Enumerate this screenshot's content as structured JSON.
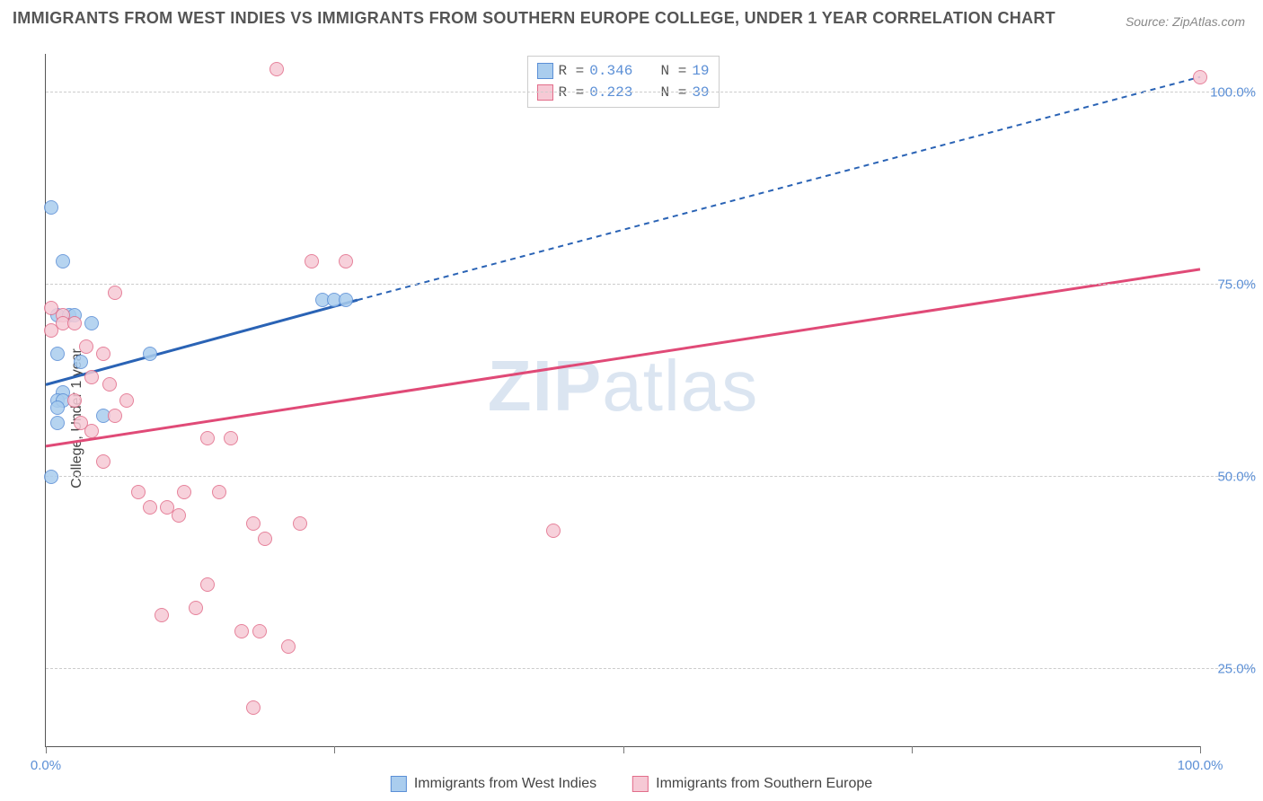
{
  "title": "IMMIGRANTS FROM WEST INDIES VS IMMIGRANTS FROM SOUTHERN EUROPE COLLEGE, UNDER 1 YEAR CORRELATION CHART",
  "source": "Source: ZipAtlas.com",
  "ylabel": "College, Under 1 year",
  "watermark_a": "ZIP",
  "watermark_b": "atlas",
  "chart": {
    "type": "scatter",
    "xlim": [
      0,
      100
    ],
    "ylim": [
      15,
      105
    ],
    "ytick_labels": [
      "25.0%",
      "50.0%",
      "75.0%",
      "100.0%"
    ],
    "ytick_values": [
      25,
      50,
      75,
      100
    ],
    "xtick_values": [
      0,
      25,
      50,
      75,
      100
    ],
    "xaxis_labels": [
      {
        "x": 0,
        "text": "0.0%"
      },
      {
        "x": 100,
        "text": "100.0%"
      }
    ],
    "grid_color": "#cccccc",
    "background_color": "#ffffff",
    "marker_radius": 8,
    "series": [
      {
        "name": "Immigrants from West Indies",
        "color_fill": "#aacdee",
        "color_stroke": "#5b8fd6",
        "R": "0.346",
        "N": "19",
        "trend": {
          "x1": 0,
          "y1": 62,
          "x2": 27,
          "y2": 73,
          "color": "#2a63b5",
          "width": 3
        },
        "trend_dash": {
          "x1": 27,
          "y1": 73,
          "x2": 100,
          "y2": 102,
          "color": "#2a63b5",
          "width": 2,
          "dash": "6,5"
        },
        "points": [
          {
            "x": 0.5,
            "y": 85
          },
          {
            "x": 1.5,
            "y": 78
          },
          {
            "x": 1.0,
            "y": 71
          },
          {
            "x": 2.0,
            "y": 71
          },
          {
            "x": 2.5,
            "y": 71
          },
          {
            "x": 4.0,
            "y": 70
          },
          {
            "x": 1.0,
            "y": 66
          },
          {
            "x": 3.0,
            "y": 65
          },
          {
            "x": 1.5,
            "y": 61
          },
          {
            "x": 1.0,
            "y": 60
          },
          {
            "x": 1.5,
            "y": 60
          },
          {
            "x": 1.0,
            "y": 59
          },
          {
            "x": 5.0,
            "y": 58
          },
          {
            "x": 9.0,
            "y": 66
          },
          {
            "x": 1.0,
            "y": 57
          },
          {
            "x": 0.5,
            "y": 50
          },
          {
            "x": 24.0,
            "y": 73
          },
          {
            "x": 25.0,
            "y": 73
          },
          {
            "x": 26.0,
            "y": 73
          }
        ]
      },
      {
        "name": "Immigrants from Southern Europe",
        "color_fill": "#f6c9d5",
        "color_stroke": "#e26d8a",
        "R": "0.223",
        "N": "39",
        "trend": {
          "x1": 0,
          "y1": 54,
          "x2": 100,
          "y2": 77,
          "color": "#e04a77",
          "width": 3
        },
        "points": [
          {
            "x": 20.0,
            "y": 103
          },
          {
            "x": 100.0,
            "y": 102
          },
          {
            "x": 23.0,
            "y": 78
          },
          {
            "x": 26.0,
            "y": 78
          },
          {
            "x": 6.0,
            "y": 74
          },
          {
            "x": 0.5,
            "y": 72
          },
          {
            "x": 1.5,
            "y": 71
          },
          {
            "x": 1.5,
            "y": 70
          },
          {
            "x": 2.5,
            "y": 70
          },
          {
            "x": 0.5,
            "y": 69
          },
          {
            "x": 3.5,
            "y": 67
          },
          {
            "x": 5.0,
            "y": 66
          },
          {
            "x": 4.0,
            "y": 63
          },
          {
            "x": 5.5,
            "y": 62
          },
          {
            "x": 2.5,
            "y": 60
          },
          {
            "x": 7.0,
            "y": 60
          },
          {
            "x": 6.0,
            "y": 58
          },
          {
            "x": 3.0,
            "y": 57
          },
          {
            "x": 4.0,
            "y": 56
          },
          {
            "x": 14.0,
            "y": 55
          },
          {
            "x": 16.0,
            "y": 55
          },
          {
            "x": 5.0,
            "y": 52
          },
          {
            "x": 8.0,
            "y": 48
          },
          {
            "x": 12.0,
            "y": 48
          },
          {
            "x": 15.0,
            "y": 48
          },
          {
            "x": 9.0,
            "y": 46
          },
          {
            "x": 10.5,
            "y": 46
          },
          {
            "x": 11.5,
            "y": 45
          },
          {
            "x": 18.0,
            "y": 44
          },
          {
            "x": 22.0,
            "y": 44
          },
          {
            "x": 44.0,
            "y": 43
          },
          {
            "x": 19.0,
            "y": 42
          },
          {
            "x": 14.0,
            "y": 36
          },
          {
            "x": 10.0,
            "y": 32
          },
          {
            "x": 13.0,
            "y": 33
          },
          {
            "x": 17.0,
            "y": 30
          },
          {
            "x": 18.5,
            "y": 30
          },
          {
            "x": 21.0,
            "y": 28
          },
          {
            "x": 18.0,
            "y": 20
          }
        ]
      }
    ]
  },
  "legend_bottom": [
    {
      "swatch_fill": "#aacdee",
      "swatch_stroke": "#5b8fd6",
      "label": "Immigrants from West Indies"
    },
    {
      "swatch_fill": "#f6c9d5",
      "swatch_stroke": "#e26d8a",
      "label": "Immigrants from Southern Europe"
    }
  ]
}
